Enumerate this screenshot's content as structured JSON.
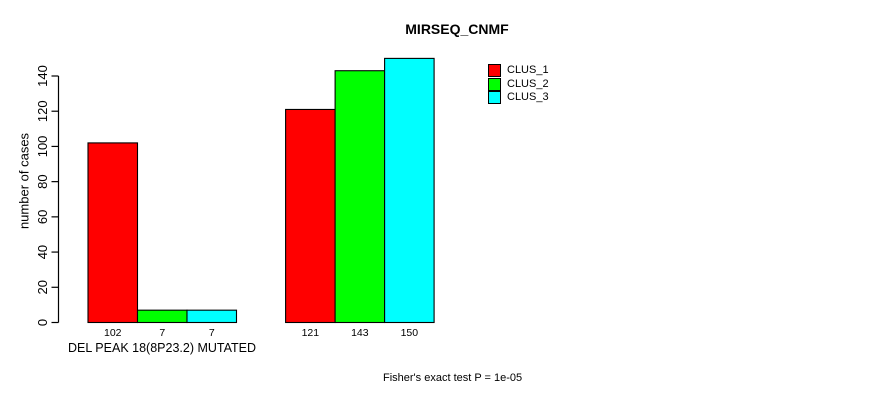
{
  "chart_data": {
    "type": "bar",
    "title": "MIRSEQ_CNMF",
    "ylabel": "number of cases",
    "xlabel": "DEL PEAK 18(8P23.2) MUTATED",
    "annotation": "Fisher's exact test P = 1e-05",
    "series": [
      {
        "name": "CLUS_1",
        "color": "#FF0000",
        "values": [
          102,
          121
        ]
      },
      {
        "name": "CLUS_2",
        "color": "#00FF00",
        "values": [
          7,
          143
        ]
      },
      {
        "name": "CLUS_3",
        "color": "#00FFFF",
        "values": [
          7,
          150
        ]
      }
    ],
    "bar_value_labels": [
      [
        102,
        7,
        7
      ],
      [
        121,
        143,
        150
      ]
    ],
    "yticks": [
      0,
      20,
      40,
      60,
      80,
      100,
      120,
      140
    ],
    "ylim": [
      0,
      150
    ],
    "grid": false,
    "legend_position": "top-right",
    "axis_color": "#000000",
    "background_color": "#FFFFFF"
  }
}
